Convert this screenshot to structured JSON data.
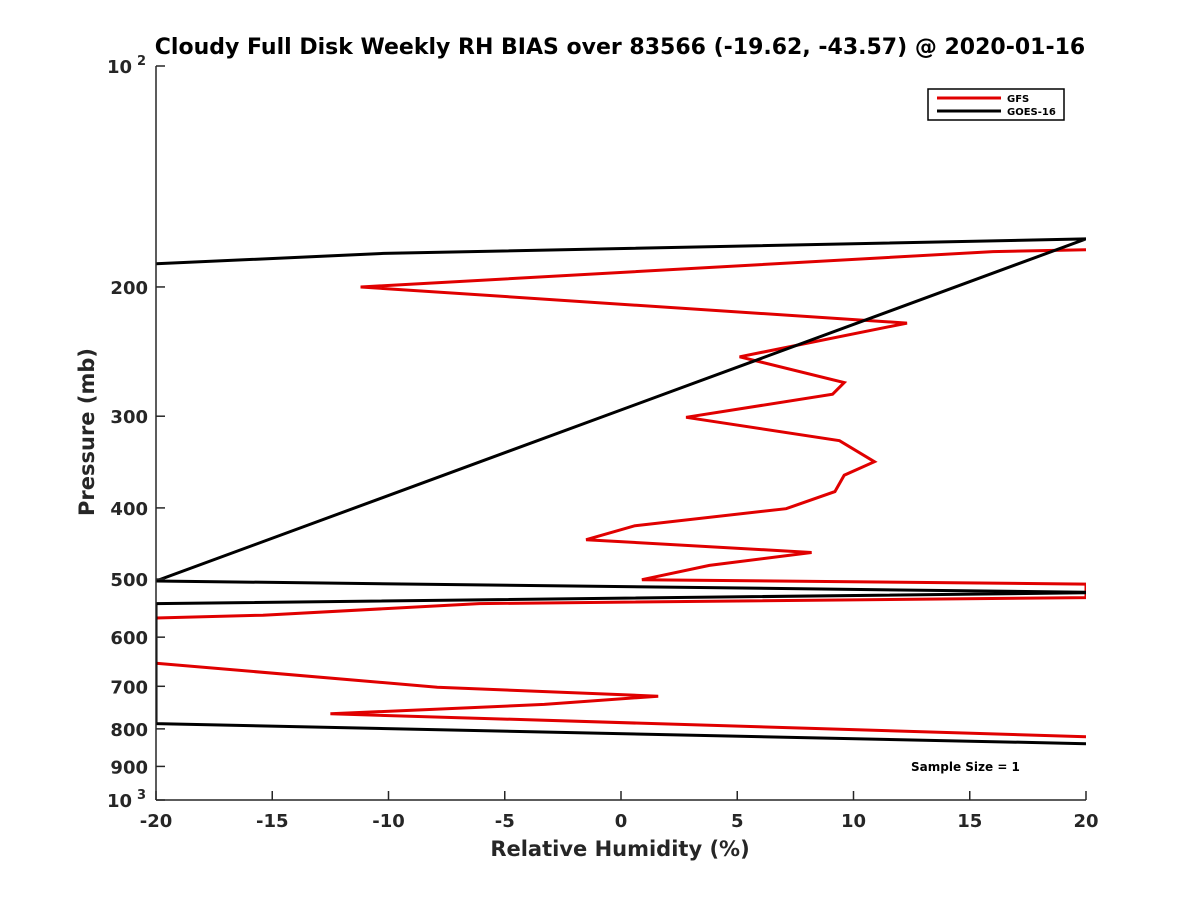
{
  "chart_data": {
    "type": "line",
    "title": "Cloudy Full Disk Weekly RH BIAS over 83566 (-19.62, -43.57) @ 2020-01-16",
    "xlabel": "Relative Humidity (%)",
    "ylabel": "Pressure (mb)",
    "xlim": [
      -20,
      20
    ],
    "ylim": [
      100,
      1000
    ],
    "y_scale": "log",
    "y_reversed": true,
    "grid": false,
    "legend_position": "top-right",
    "x_ticks": [
      {
        "value": -20,
        "label": "-20"
      },
      {
        "value": -15,
        "label": "-15"
      },
      {
        "value": -10,
        "label": "-10"
      },
      {
        "value": -5,
        "label": "-5"
      },
      {
        "value": 0,
        "label": "0"
      },
      {
        "value": 5,
        "label": "5"
      },
      {
        "value": 10,
        "label": "10"
      },
      {
        "value": 15,
        "label": "15"
      },
      {
        "value": 20,
        "label": "20"
      }
    ],
    "y_ticks": [
      {
        "value": 100,
        "label": "10",
        "exp": "2"
      },
      {
        "value": 200,
        "label": "200"
      },
      {
        "value": 300,
        "label": "300"
      },
      {
        "value": 400,
        "label": "400"
      },
      {
        "value": 500,
        "label": "500"
      },
      {
        "value": 600,
        "label": "600"
      },
      {
        "value": 700,
        "label": "700"
      },
      {
        "value": 800,
        "label": "800"
      },
      {
        "value": 900,
        "label": "900"
      },
      {
        "value": 1000,
        "label": "10",
        "exp": "3"
      }
    ],
    "annotation": "Sample Size = 1",
    "series": [
      {
        "name": "GFS",
        "color": "#e00000",
        "points": [
          {
            "x": 20,
            "y": 178
          },
          {
            "x": 16,
            "y": 179
          },
          {
            "x": -11.2,
            "y": 200
          },
          {
            "x": 12.3,
            "y": 224
          },
          {
            "x": 5.1,
            "y": 249
          },
          {
            "x": 9.6,
            "y": 270
          },
          {
            "x": 9.1,
            "y": 280
          },
          {
            "x": 2.8,
            "y": 301
          },
          {
            "x": 9.4,
            "y": 324
          },
          {
            "x": 10.9,
            "y": 346
          },
          {
            "x": 9.6,
            "y": 361
          },
          {
            "x": 9.2,
            "y": 380
          },
          {
            "x": 7.1,
            "y": 401
          },
          {
            "x": 0.6,
            "y": 423
          },
          {
            "x": -1.5,
            "y": 442
          },
          {
            "x": 8.2,
            "y": 460
          },
          {
            "x": 3.8,
            "y": 479
          },
          {
            "x": 0.9,
            "y": 501
          },
          {
            "x": 20,
            "y": 508
          },
          {
            "x": 20,
            "y": 521
          },
          {
            "x": 20,
            "y": 530
          },
          {
            "x": -6.1,
            "y": 540
          },
          {
            "x": -15.4,
            "y": 560
          },
          {
            "x": -20,
            "y": 565
          },
          {
            "x": -20,
            "y": 651
          },
          {
            "x": -7.9,
            "y": 702
          },
          {
            "x": 1.6,
            "y": 722
          },
          {
            "x": -3.3,
            "y": 741
          },
          {
            "x": -12.5,
            "y": 763
          },
          {
            "x": 20,
            "y": 820
          }
        ]
      },
      {
        "name": "GOES-16",
        "color": "#000000",
        "points": [
          {
            "x": -20,
            "y": 186
          },
          {
            "x": -10.2,
            "y": 180
          },
          {
            "x": 20,
            "y": 172
          },
          {
            "x": 20,
            "y": 172
          },
          {
            "x": -20,
            "y": 503
          },
          {
            "x": 20,
            "y": 521
          },
          {
            "x": 20,
            "y": 522
          },
          {
            "x": -20,
            "y": 540
          },
          {
            "x": -20,
            "y": 787
          },
          {
            "x": 20,
            "y": 838
          }
        ]
      }
    ]
  }
}
